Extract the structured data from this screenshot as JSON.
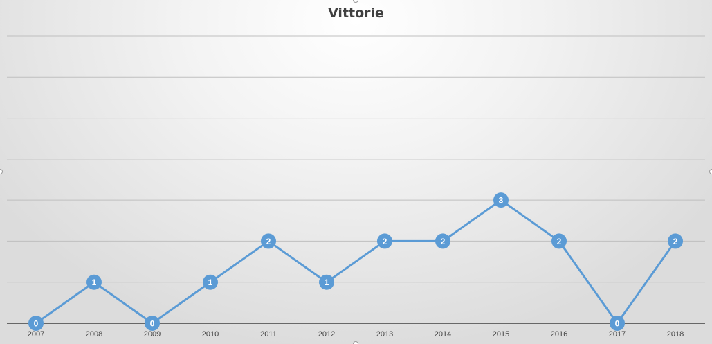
{
  "chart_data": {
    "type": "line",
    "title": "Vittorie",
    "xlabel": "",
    "ylabel": "",
    "categories": [
      "2007",
      "2008",
      "2009",
      "2010",
      "2011",
      "2012",
      "2013",
      "2014",
      "2015",
      "2016",
      "2017",
      "2018"
    ],
    "series": [
      {
        "values": [
          0,
          1,
          0,
          1,
          2,
          1,
          2,
          2,
          3,
          2,
          0,
          2
        ],
        "color": "#5b9bd5"
      }
    ],
    "ylim": [
      0,
      7
    ],
    "y_tick_step": 1,
    "y_tick_labels_visible": false,
    "grid": true,
    "legend": "none",
    "data_labels": true,
    "colors": {
      "line": "#5b9bd5",
      "marker": "#5b9bd5",
      "marker_label": "#ffffff",
      "gridline": "#bfbfbf",
      "axis": "#404040",
      "tick_label": "#404040"
    }
  }
}
